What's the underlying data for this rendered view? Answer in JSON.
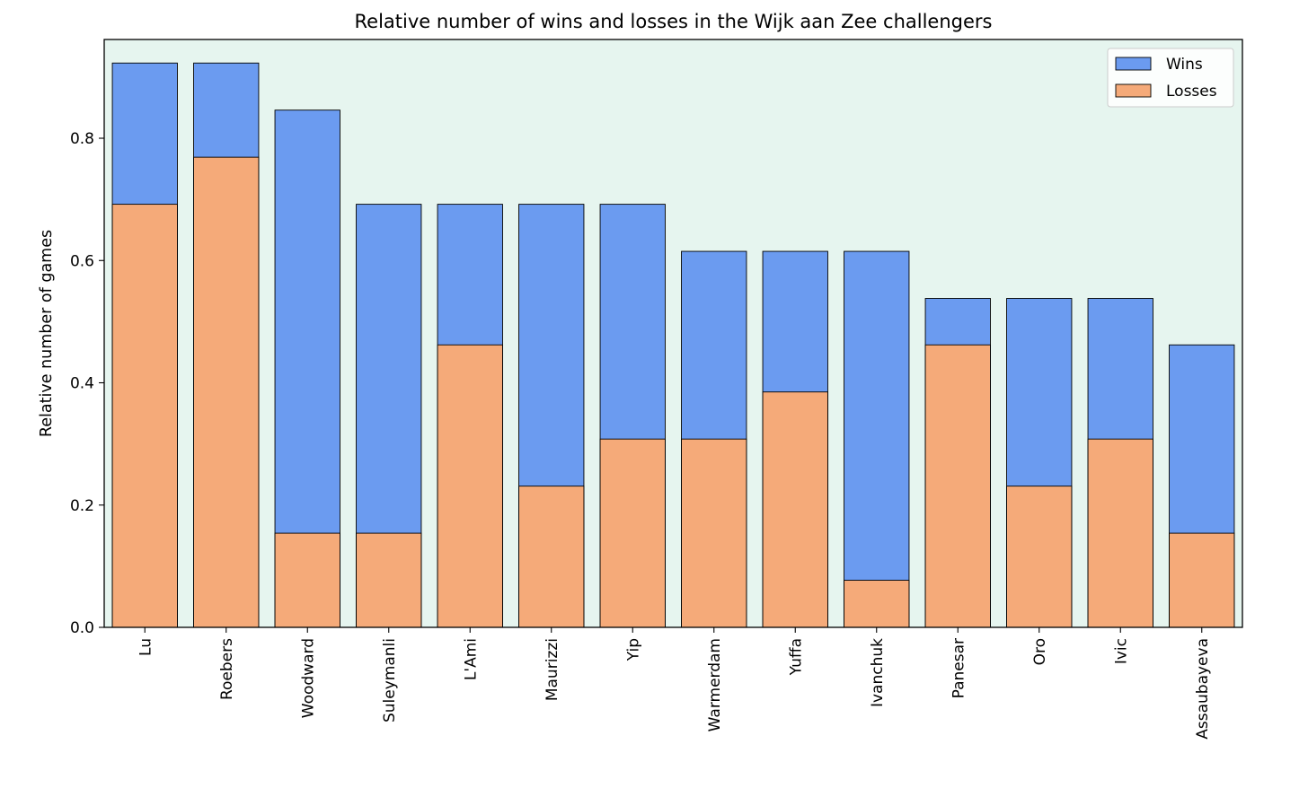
{
  "chart_data": {
    "type": "bar",
    "stacking": "overlay",
    "title": "Relative number of wins and losses in the Wijk aan Zee challengers",
    "xlabel": "",
    "ylabel": "Relative number of games",
    "ylim": [
      0,
      0.9615
    ],
    "yticks": [
      0.0,
      0.2,
      0.4,
      0.6,
      0.8
    ],
    "ytick_labels": [
      "0.0",
      "0.2",
      "0.4",
      "0.6",
      "0.8"
    ],
    "grid": false,
    "legend_position": "top-right",
    "plot_background": "#e6f5ef",
    "categories": [
      "Lu",
      "Roebers",
      "Woodward",
      "Suleymanli",
      "L'Ami",
      "Maurizzi",
      "Yip",
      "Warmerdam",
      "Yuffa",
      "Ivanchuk",
      "Panesar",
      "Oro",
      "Ivic",
      "Assaubayeva"
    ],
    "series": [
      {
        "name": "Wins",
        "color": "#6b9bf0",
        "values": [
          0.923,
          0.923,
          0.846,
          0.692,
          0.692,
          0.692,
          0.692,
          0.615,
          0.615,
          0.615,
          0.538,
          0.538,
          0.538,
          0.462
        ]
      },
      {
        "name": "Losses",
        "color": "#f5aa79",
        "values": [
          0.692,
          0.769,
          0.154,
          0.154,
          0.462,
          0.231,
          0.308,
          0.308,
          0.385,
          0.077,
          0.462,
          0.231,
          0.308,
          0.154
        ]
      }
    ]
  }
}
